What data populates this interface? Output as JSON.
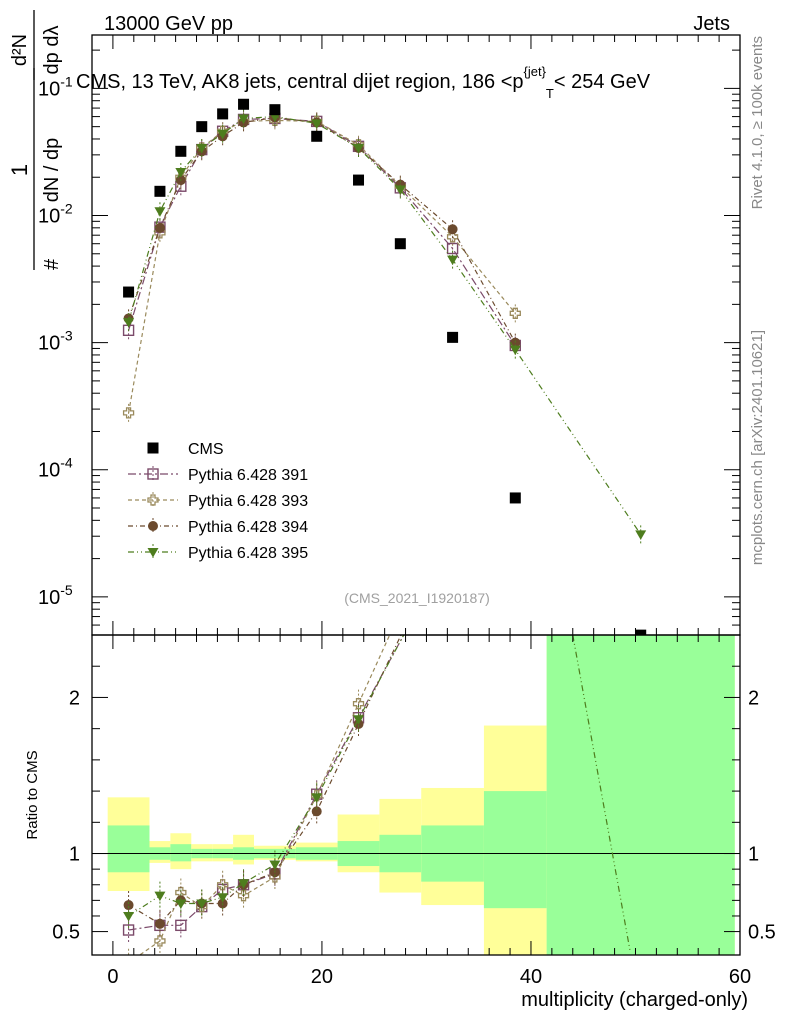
{
  "header": {
    "left": "13000 GeV pp",
    "right": "Jets"
  },
  "side_labels": {
    "rivet": "Rivet 4.1.0, ≥ 100k events",
    "mcplots": "mcplots.cern.ch [arXiv:2401.10621]"
  },
  "chart_data": {
    "type": "scatter",
    "title": "CMS, 13 TeV, AK8 jets, central dijet region, 186 <p_T^{jet}< 254 GeV",
    "analysis_id": "(CMS_2021_I1920187)",
    "xlabel": "multiplicity (charged-only)",
    "ylabel_main": "1/(dN/dp_T) d²N/(dp_T dλ)",
    "ylabel_ratio": "Ratio to CMS",
    "x_ticks": [
      "0",
      "20",
      "40",
      "60"
    ],
    "y_ticks_main": [
      "10^{-5}",
      "10^{-4}",
      "10^{-3}",
      "10^{-2}",
      "10^{-1}"
    ],
    "y_ticks_ratio": [
      "0.5",
      "1",
      "2"
    ],
    "xlim": [
      -2,
      60
    ],
    "ylim_main_log10": [
      -5.3,
      -0.58
    ],
    "ylim_ratio": [
      0.35,
      2.4
    ],
    "reference": {
      "name": "CMS",
      "x": [
        1.5,
        4.5,
        6.5,
        8.5,
        10.5,
        12.5,
        15.5,
        19.5,
        23.5,
        27.5,
        32.5,
        38.5,
        50.5
      ],
      "y": [
        0.0025,
        0.0155,
        0.032,
        0.05,
        0.063,
        0.075,
        0.068,
        0.042,
        0.019,
        0.006,
        0.0011,
        6e-05,
        5e-06
      ],
      "bins": [
        [
          -0.5,
          3.5
        ],
        [
          3.5,
          5.5
        ],
        [
          5.5,
          7.5
        ],
        [
          7.5,
          9.5
        ],
        [
          9.5,
          11.5
        ],
        [
          11.5,
          13.5
        ],
        [
          13.5,
          17.5
        ],
        [
          17.5,
          21.5
        ],
        [
          21.5,
          25.5
        ],
        [
          25.5,
          29.5
        ],
        [
          29.5,
          35.5
        ],
        [
          35.5,
          41.5
        ],
        [
          41.5,
          59.5
        ]
      ],
      "band_inner": [
        [
          0.88,
          1.18
        ],
        [
          0.96,
          1.04
        ],
        [
          0.95,
          1.06
        ],
        [
          0.97,
          1.03
        ],
        [
          0.97,
          1.03
        ],
        [
          0.96,
          1.04
        ],
        [
          0.97,
          1.03
        ],
        [
          0.96,
          1.04
        ],
        [
          0.92,
          1.08
        ],
        [
          0.88,
          1.12
        ],
        [
          0.82,
          1.18
        ],
        [
          0.65,
          1.4
        ],
        [
          0.35,
          2.4
        ]
      ],
      "band_outer": [
        [
          0.76,
          1.36
        ],
        [
          0.94,
          1.08
        ],
        [
          0.9,
          1.13
        ],
        [
          0.95,
          1.06
        ],
        [
          0.95,
          1.06
        ],
        [
          0.93,
          1.12
        ],
        [
          0.96,
          1.05
        ],
        [
          0.95,
          1.07
        ],
        [
          0.88,
          1.25
        ],
        [
          0.75,
          1.35
        ],
        [
          0.67,
          1.42
        ],
        [
          0.35,
          1.82
        ],
        [
          0.35,
          2.4
        ]
      ]
    },
    "series": [
      {
        "name": "Pythia 6.428 391",
        "color": "#7b4a6a",
        "marker": "open-square",
        "dash": "8,3,2,3",
        "x": [
          1.5,
          4.5,
          6.5,
          8.5,
          10.5,
          12.5,
          15.5,
          19.5,
          23.5,
          27.5,
          32.5,
          38.5
        ],
        "y": [
          0.00125,
          0.0081,
          0.017,
          0.033,
          0.046,
          0.057,
          0.058,
          0.055,
          0.035,
          0.0165,
          0.0055,
          0.00095
        ],
        "ratio": [
          0.51,
          0.54,
          0.54,
          0.66,
          0.77,
          0.8,
          0.87,
          1.38,
          1.87
        ]
      },
      {
        "name": "Pythia 6.428 393",
        "color": "#9a8a5c",
        "marker": "open-cross",
        "dash": "4,3",
        "x": [
          1.5,
          4.5,
          6.5,
          8.5,
          10.5,
          12.5,
          15.5,
          19.5,
          23.5,
          27.5,
          32.5,
          38.5
        ],
        "y": [
          0.00028,
          0.0073,
          0.02,
          0.034,
          0.046,
          0.055,
          0.056,
          0.055,
          0.036,
          0.017,
          0.0068,
          0.0017
        ],
        "ratio": [
          0.3,
          0.44,
          0.75,
          0.66,
          0.8,
          0.73,
          0.85,
          1.37,
          1.96
        ]
      },
      {
        "name": "Pythia 6.428 394",
        "color": "#6b4a2e",
        "marker": "filled-circle",
        "dash": "5,3,1,3",
        "x": [
          1.5,
          4.5,
          6.5,
          8.5,
          10.5,
          12.5,
          15.5,
          19.5,
          23.5,
          27.5,
          32.5,
          38.5
        ],
        "y": [
          0.00155,
          0.008,
          0.019,
          0.032,
          0.042,
          0.054,
          0.059,
          0.054,
          0.034,
          0.0175,
          0.0078,
          0.001
        ],
        "ratio": [
          0.67,
          0.55,
          0.7,
          0.68,
          0.68,
          0.8,
          0.88,
          1.27,
          1.83
        ]
      },
      {
        "name": "Pythia 6.428 395",
        "color": "#4e7d1e",
        "marker": "filled-triangle-down",
        "dash": "6,3,1,3,1,3",
        "x": [
          1.5,
          4.5,
          6.5,
          8.5,
          10.5,
          12.5,
          15.5,
          19.5,
          23.5,
          27.5,
          32.5,
          38.5,
          50.5
        ],
        "y": [
          0.00145,
          0.0108,
          0.022,
          0.034,
          0.044,
          0.058,
          0.06,
          0.053,
          0.034,
          0.016,
          0.0045,
          0.00088,
          3.1e-05
        ],
        "ratio": [
          0.6,
          0.73,
          0.68,
          0.68,
          0.72,
          0.81,
          0.93,
          1.36,
          1.86
        ]
      }
    ]
  }
}
